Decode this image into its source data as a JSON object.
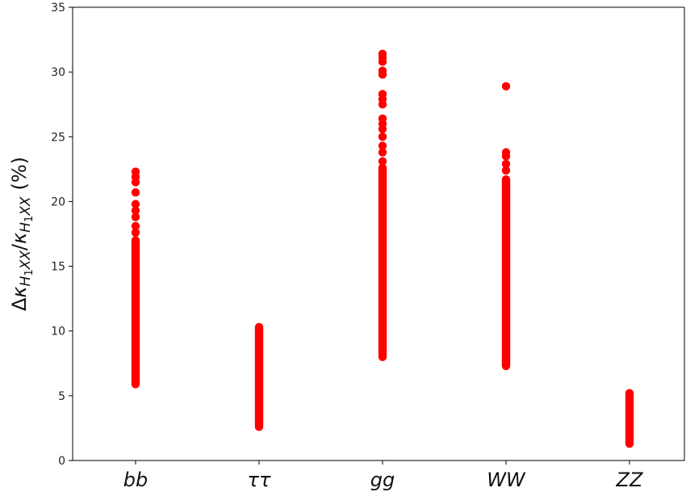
{
  "chart_data": {
    "type": "scatter",
    "categories": [
      "bb",
      "ττ",
      "gg",
      "WW",
      "ZZ"
    ],
    "ylabel": "Δκ_{H1XX}/κ_{H1XX} (%)",
    "ylabel_parts": {
      "delta": "Δ",
      "kappa": "κ",
      "sub_H": "H",
      "sub_1": "1",
      "sub_xx": "XX",
      "slash": "/",
      "unit": "(%)"
    },
    "ylim": [
      0,
      35
    ],
    "yticks": [
      "0",
      "5",
      "10",
      "15",
      "20",
      "25",
      "30",
      "35"
    ],
    "grid": false,
    "marker_color": "#ff0000",
    "series": [
      {
        "category": "bb",
        "range": [
          5.9,
          17.0
        ],
        "points": [
          17.6,
          18.1,
          18.8,
          19.3,
          19.8,
          20.7,
          21.5,
          21.9,
          22.3
        ]
      },
      {
        "category": "ττ",
        "range": [
          2.6,
          10.3
        ],
        "points": []
      },
      {
        "category": "gg",
        "range": [
          8.0,
          22.6
        ],
        "points": [
          23.1,
          23.8,
          24.3,
          25.0,
          25.6,
          26.0,
          26.4,
          27.5,
          27.9,
          28.3,
          29.8,
          30.1,
          30.8,
          31.1,
          31.4
        ]
      },
      {
        "category": "WW",
        "range": [
          7.3,
          21.7
        ],
        "points": [
          22.4,
          22.9,
          23.5,
          23.8,
          28.9
        ]
      },
      {
        "category": "ZZ",
        "range": [
          1.3,
          5.2
        ],
        "points": []
      }
    ]
  }
}
